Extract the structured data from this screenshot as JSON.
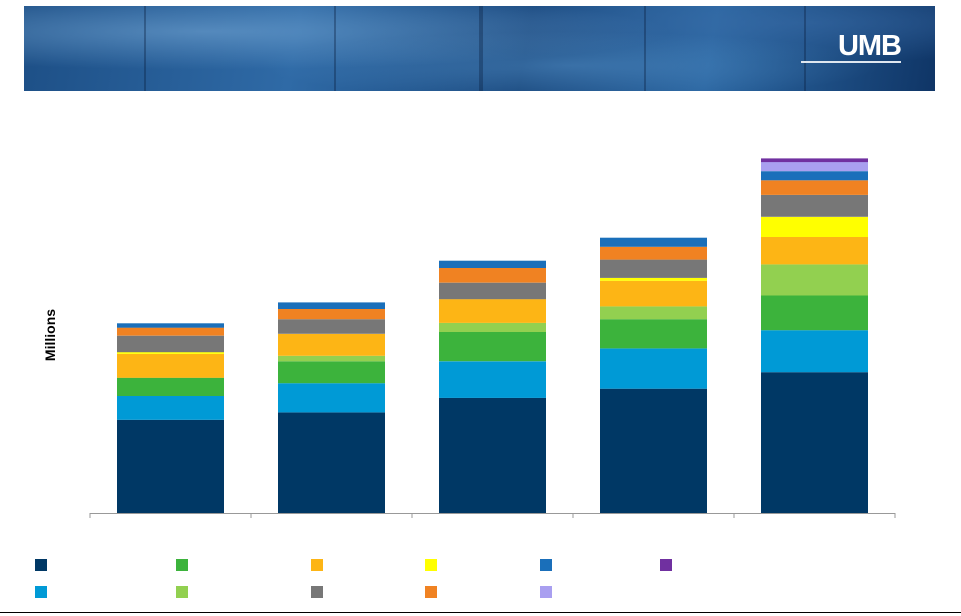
{
  "banner": {
    "logo_text": "UMB"
  },
  "chart_data": {
    "type": "bar",
    "stacked": true,
    "ylabel": "Millions",
    "xlabel": "",
    "categories": [
      "",
      "",
      "",
      "",
      ""
    ],
    "ylim": [
      0,
      1000
    ],
    "grid": false,
    "legend_position": "bottom",
    "series": [
      {
        "color": "#003865",
        "values": [
          255,
          275,
          315,
          340,
          385
        ]
      },
      {
        "color": "#009ad6",
        "values": [
          65,
          80,
          100,
          110,
          115
        ]
      },
      {
        "color": "#3cb33c",
        "values": [
          50,
          60,
          80,
          80,
          95
        ]
      },
      {
        "color": "#92d050",
        "values": [
          0,
          15,
          25,
          35,
          85
        ]
      },
      {
        "color": "#fdb515",
        "values": [
          65,
          60,
          65,
          70,
          75
        ]
      },
      {
        "color": "#ffff00",
        "values": [
          5,
          0,
          0,
          8,
          55
        ]
      },
      {
        "color": "#777777",
        "values": [
          45,
          40,
          45,
          50,
          60
        ]
      },
      {
        "color": "#f08222",
        "values": [
          22,
          28,
          40,
          35,
          40
        ]
      },
      {
        "color": "#1a6fba",
        "values": [
          12,
          18,
          20,
          25,
          25
        ]
      },
      {
        "color": "#a99ff0",
        "values": [
          0,
          0,
          0,
          0,
          25
        ]
      },
      {
        "color": "#7030a0",
        "values": [
          0,
          0,
          0,
          0,
          10
        ]
      }
    ]
  },
  "legend": {
    "swatches": [
      {
        "color": "#003865"
      },
      {
        "color": "#3cb33c"
      },
      {
        "color": "#fdb515"
      },
      {
        "color": "#ffff00"
      },
      {
        "color": "#1a6fba"
      },
      {
        "color": "#7030a0"
      },
      {
        "color": "#009ad6"
      },
      {
        "color": "#92d050"
      },
      {
        "color": "#777777"
      },
      {
        "color": "#f08222"
      },
      {
        "color": "#a99ff0"
      }
    ]
  }
}
